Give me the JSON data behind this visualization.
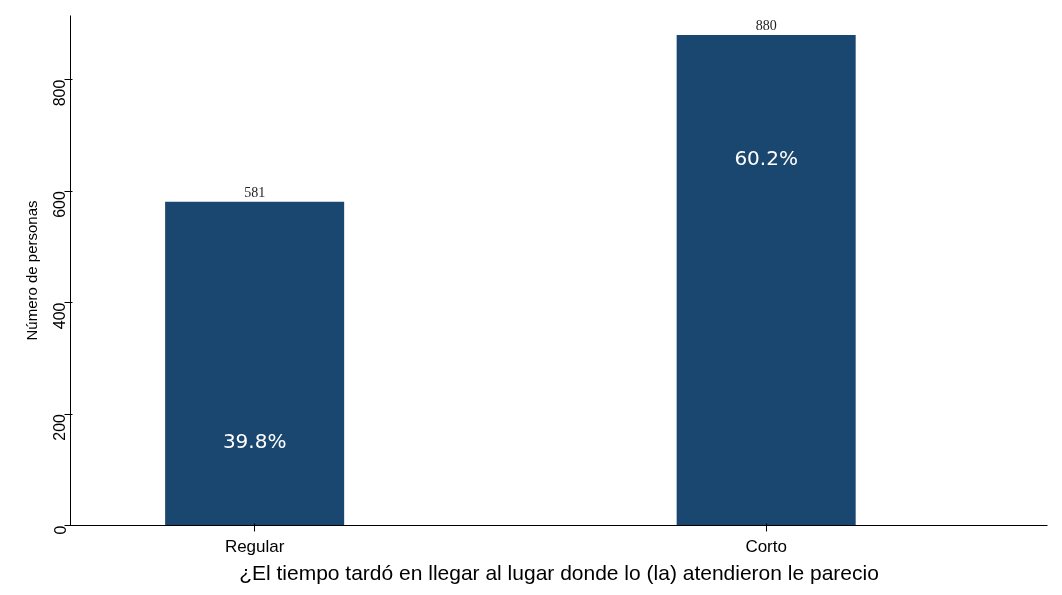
{
  "chart_data": {
    "type": "bar",
    "xlabel": "¿El tiempo tardó en llegar al lugar donde lo (la) atendieron le parecio",
    "ylabel": "Número de personas",
    "categories": [
      "Regular",
      "Corto"
    ],
    "values": [
      581,
      880
    ],
    "color": "#1a476f",
    "data_labels": true,
    "ylim": [
      0,
      915
    ],
    "yticks": [
      0,
      200,
      400,
      600,
      800
    ],
    "grid": false,
    "annotations": [
      "39.8%",
      "60.2%"
    ]
  }
}
